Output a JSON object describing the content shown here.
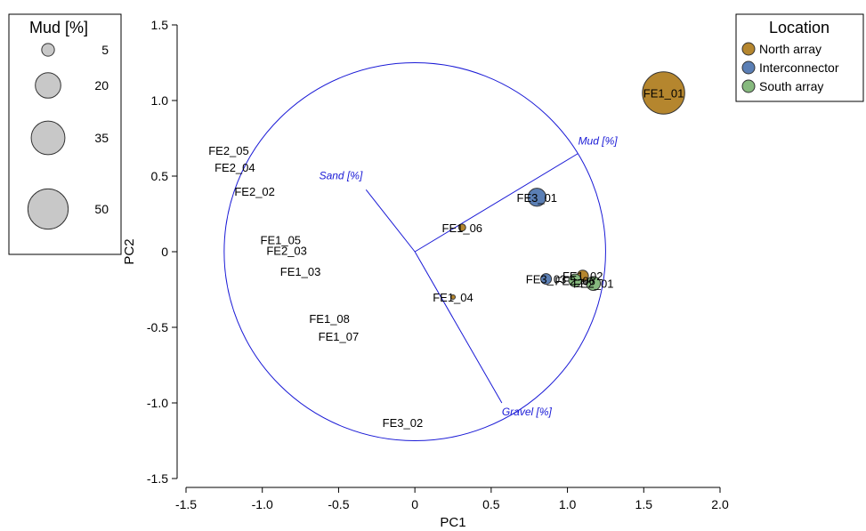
{
  "chart_data": {
    "type": "scatter",
    "title": "",
    "xlabel": "PC1",
    "ylabel": "PC2",
    "xlim": [
      -1.5,
      2.0
    ],
    "ylim": [
      -1.5,
      1.5
    ],
    "xticks": [
      "-1.5",
      "-1.0",
      "-0.5",
      "0",
      "0.5",
      "1.0",
      "1.5",
      "2.0"
    ],
    "yticks": [
      "1.5",
      "1.0",
      "0.5",
      "0",
      "-0.5",
      "-1.0",
      "-1.5"
    ],
    "xtick_values": [
      -1.5,
      -1.0,
      -0.5,
      0,
      0.5,
      1.0,
      1.5,
      2.0
    ],
    "ytick_values": [
      1.5,
      1.0,
      0.5,
      0,
      -0.5,
      -1.0,
      -1.5
    ],
    "grid": false,
    "circle_radius": 1.25,
    "colors": {
      "North array": "#b5862e",
      "Interconnector": "#5b7fb5",
      "South array": "#86b97e",
      "vectors": "#1a1ad6"
    },
    "vectors": [
      {
        "label": "Mud [%]",
        "x": 1.07,
        "y": 0.65
      },
      {
        "label": "Sand [%]",
        "x": -0.32,
        "y": 0.41
      },
      {
        "label": "Gravel [%]",
        "x": 0.57,
        "y": -1.0
      }
    ],
    "points": [
      {
        "label": "FE1_01",
        "x": 1.63,
        "y": 1.05,
        "mud": 55,
        "location": "North array"
      },
      {
        "label": "FE3_01",
        "x": 0.8,
        "y": 0.36,
        "mud": 10,
        "location": "Interconnector"
      },
      {
        "label": "FE1_06",
        "x": 0.31,
        "y": 0.16,
        "mud": 1.5,
        "location": "North array"
      },
      {
        "label": "FE1_04",
        "x": 0.25,
        "y": -0.3,
        "mud": 0.3,
        "location": "North array"
      },
      {
        "label": "FE1_02",
        "x": 1.1,
        "y": -0.16,
        "mud": 4,
        "location": "North array"
      },
      {
        "label": "FE3_03",
        "x": 0.86,
        "y": -0.18,
        "mud": 3.5,
        "location": "Interconnector"
      },
      {
        "label": "FE2_06",
        "x": 1.05,
        "y": -0.19,
        "mud": 5,
        "location": "South array"
      },
      {
        "label": "FE2_01",
        "x": 1.17,
        "y": -0.21,
        "mud": 6,
        "location": "South array"
      },
      {
        "label": "FE2_05",
        "x": -1.22,
        "y": 0.67,
        "mud": 0,
        "location": ""
      },
      {
        "label": "FE2_04",
        "x": -1.18,
        "y": 0.56,
        "mud": 0,
        "location": ""
      },
      {
        "label": "FE2_02",
        "x": -1.05,
        "y": 0.4,
        "mud": 0,
        "location": ""
      },
      {
        "label": "FE1_05",
        "x": -0.88,
        "y": 0.08,
        "mud": 0,
        "location": ""
      },
      {
        "label": "FE2_03",
        "x": -0.84,
        "y": 0.01,
        "mud": 0,
        "location": ""
      },
      {
        "label": "FE1_03",
        "x": -0.75,
        "y": -0.13,
        "mud": 0,
        "location": ""
      },
      {
        "label": "FE1_08",
        "x": -0.56,
        "y": -0.44,
        "mud": 0,
        "location": ""
      },
      {
        "label": "FE1_07",
        "x": -0.5,
        "y": -0.56,
        "mud": 0,
        "location": ""
      },
      {
        "label": "FE3_02",
        "x": -0.08,
        "y": -1.13,
        "mud": 0,
        "location": ""
      }
    ],
    "size_legend": {
      "title": "Mud [%]",
      "entries": [
        {
          "label": "5",
          "value": 5
        },
        {
          "label": "20",
          "value": 20
        },
        {
          "label": "35",
          "value": 35
        },
        {
          "label": "50",
          "value": 50
        }
      ]
    },
    "color_legend": {
      "title": "Location",
      "placement": "top-right",
      "entries": [
        "North array",
        "Interconnector",
        "South array"
      ]
    }
  }
}
